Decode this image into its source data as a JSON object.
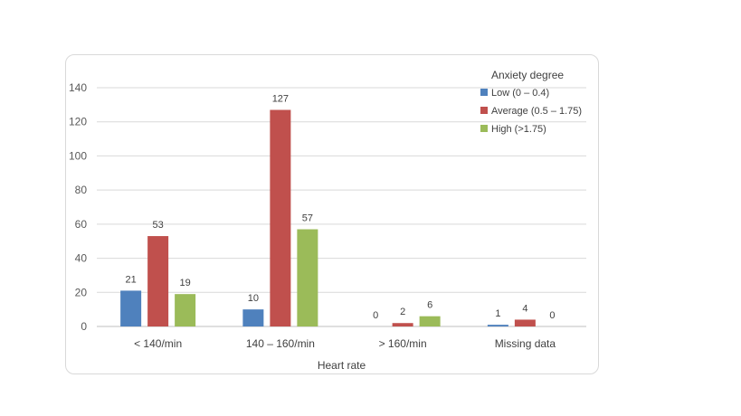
{
  "chart_data": {
    "type": "bar",
    "xlabel": "Heart rate",
    "ylabel": "",
    "ylim": [
      0,
      140
    ],
    "yticks": [
      0,
      20,
      40,
      60,
      80,
      100,
      120,
      140
    ],
    "grid": true,
    "legend_position": "top-right",
    "legend_title": "Anxiety degree",
    "categories": [
      "< 140/min",
      "140 – 160/min",
      "> 160/min",
      "Missing data"
    ],
    "series": [
      {
        "name": "Low (0 – 0.4)",
        "color": "#4f81bd",
        "values": [
          21,
          10,
          0,
          1
        ]
      },
      {
        "name": "Average (0.5 – 1.75)",
        "color": "#c0504d",
        "values": [
          53,
          127,
          2,
          4
        ]
      },
      {
        "name": "High (>1.75)",
        "color": "#9bbb59",
        "values": [
          19,
          57,
          6,
          0
        ]
      }
    ]
  }
}
